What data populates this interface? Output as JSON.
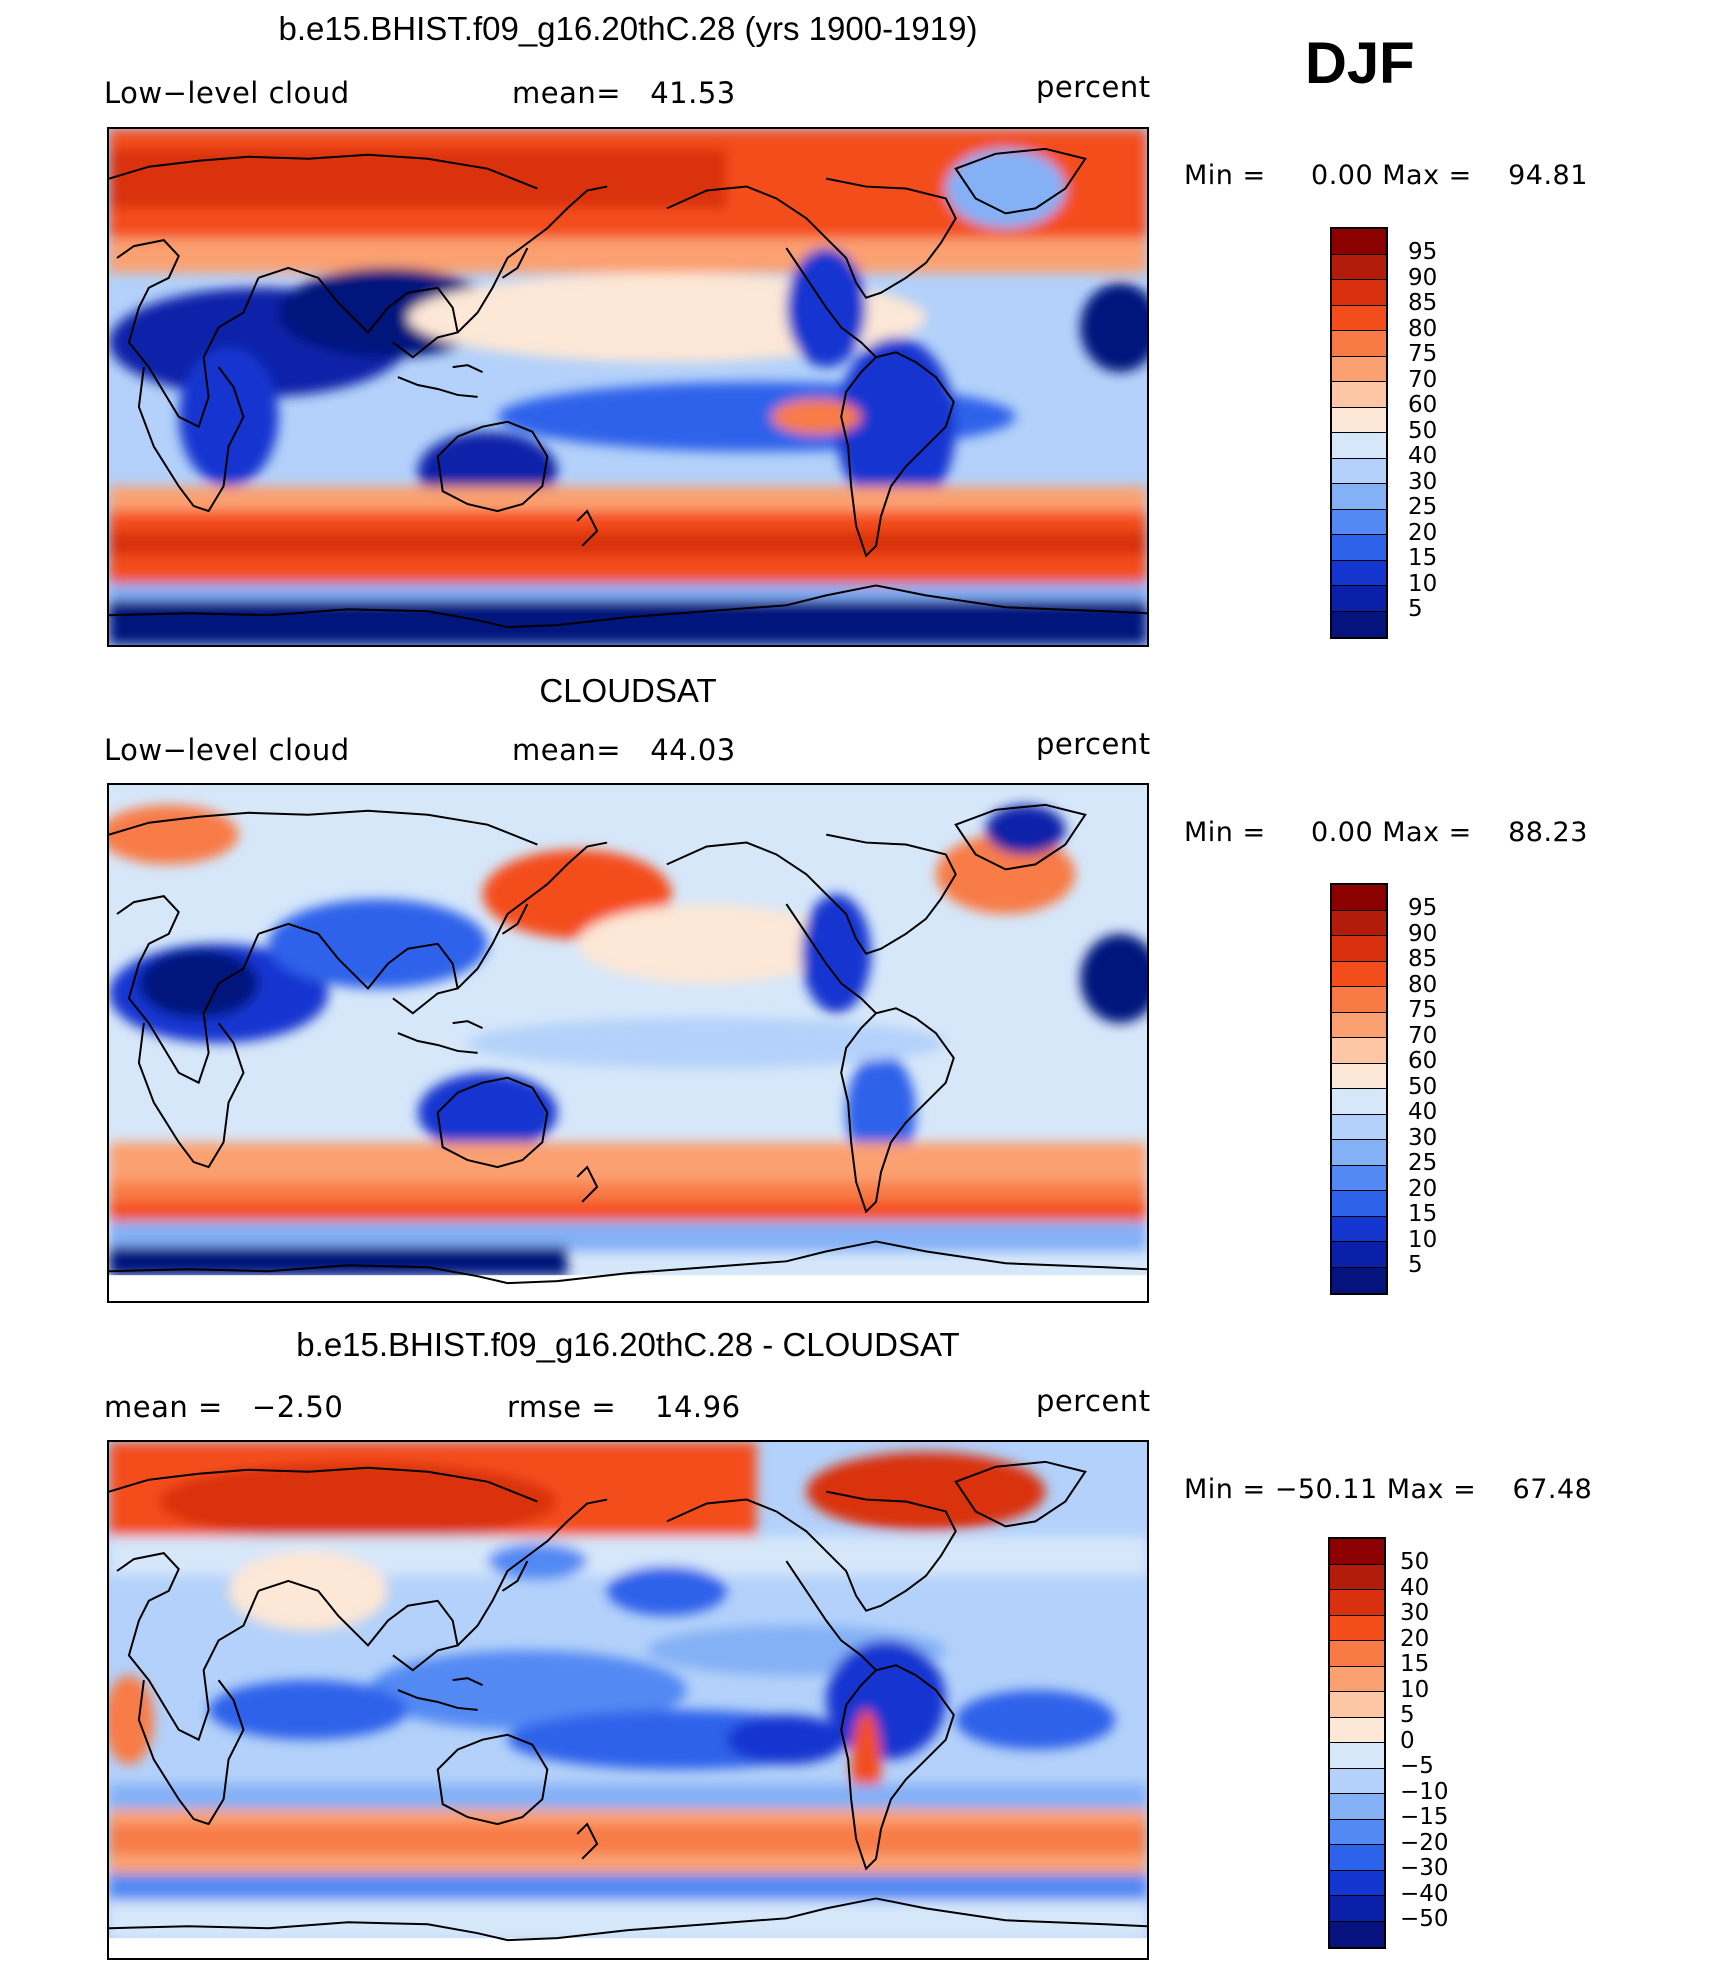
{
  "season": "DJF",
  "panels": [
    {
      "id": "model",
      "title": "b.e15.BHIST.f09_g16.20thC.28 (yrs 1900-1919)",
      "left_label": "Low−level cloud",
      "mid_label": "mean=   41.53",
      "right_label": "percent",
      "minmax": "Min =     0.00 Max =    94.81",
      "colorbar": {
        "ticks": [
          "95",
          "90",
          "85",
          "80",
          "75",
          "70",
          "60",
          "50",
          "40",
          "30",
          "25",
          "20",
          "15",
          "10",
          "5"
        ],
        "colors": [
          "#8b0000",
          "#b31b0b",
          "#d9300f",
          "#f44d1c",
          "#f87b46",
          "#fba071",
          "#fdc7a6",
          "#fde7d6",
          "#d6e7fa",
          "#b3d1fa",
          "#84b0f6",
          "#5389f3",
          "#2d62ea",
          "#1336d0",
          "#0a20a8",
          "#06127d"
        ]
      }
    },
    {
      "id": "obs",
      "title": "CLOUDSAT",
      "left_label": "Low−level cloud",
      "mid_label": "mean=   44.03",
      "right_label": "percent",
      "minmax": "Min =     0.00 Max =    88.23",
      "colorbar": {
        "ticks": [
          "95",
          "90",
          "85",
          "80",
          "75",
          "70",
          "60",
          "50",
          "40",
          "30",
          "25",
          "20",
          "15",
          "10",
          "5"
        ],
        "colors": [
          "#8b0000",
          "#b31b0b",
          "#d9300f",
          "#f44d1c",
          "#f87b46",
          "#fba071",
          "#fdc7a6",
          "#fde7d6",
          "#d6e7fa",
          "#b3d1fa",
          "#84b0f6",
          "#5389f3",
          "#2d62ea",
          "#1336d0",
          "#0a20a8",
          "#06127d"
        ]
      }
    },
    {
      "id": "diff",
      "title": "b.e15.BHIST.f09_g16.20thC.28 - CLOUDSAT",
      "left_label": "mean =   −2.50",
      "mid_label": "rmse =    14.96",
      "right_label": "percent",
      "minmax": "Min = −50.11 Max =    67.48",
      "colorbar": {
        "ticks": [
          "50",
          "40",
          "30",
          "20",
          "15",
          "10",
          "5",
          "0",
          "−5",
          "−10",
          "−15",
          "−20",
          "−30",
          "−40",
          "−50"
        ],
        "colors": [
          "#8b0000",
          "#b31b0b",
          "#d9300f",
          "#f44d1c",
          "#f87b46",
          "#fba071",
          "#fdc7a6",
          "#fde7d6",
          "#d6e7fa",
          "#b3d1fa",
          "#84b0f6",
          "#5389f3",
          "#2d62ea",
          "#1336d0",
          "#0a20a8",
          "#06127d"
        ]
      }
    }
  ]
}
